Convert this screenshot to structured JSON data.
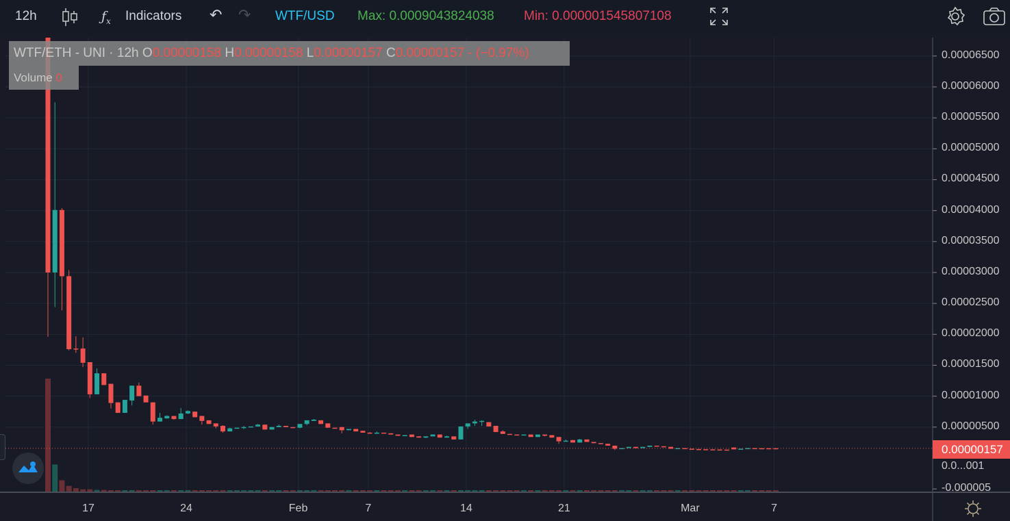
{
  "toolbar": {
    "interval": "12h",
    "indicators_label": "Indicators",
    "pair": "WTF/USD",
    "max_label": "Max: 0.0009043824038",
    "min_label": "Min: 0.000001545807108",
    "colors": {
      "pair": "#29c5f6",
      "max": "#4caf50",
      "min": "#e0435a"
    },
    "icons": [
      "candlestick-icon",
      "fx-icon",
      "undo-icon",
      "redo-icon",
      "fullscreen-icon",
      "gear-icon",
      "camera-icon"
    ]
  },
  "legend": {
    "symbol": "WTF/ETH - UNI · 12h",
    "o_label": "O",
    "o": "0.00000158",
    "h_label": "H",
    "h": "0.00000158",
    "l_label": "L",
    "l": "0.00000157",
    "c_label": "C",
    "c": "0.00000157",
    "change": "- (−0.97%)",
    "volume_label": "Volume",
    "volume": "0"
  },
  "price_axis": {
    "labels": [
      "0.00006500",
      "0.00006000",
      "0.00005500",
      "0.00005000",
      "0.00004500",
      "0.00004000",
      "0.00003500",
      "0.00003000",
      "0.00002500",
      "0.00002000",
      "0.00001500",
      "0.00001000",
      "0.00000500",
      "0.0...001",
      "-0.000005"
    ],
    "last_price": "0.00000157"
  },
  "time_axis": {
    "labels": [
      "17",
      "24",
      "Feb",
      "7",
      "14",
      "21",
      "Mar",
      "7"
    ]
  },
  "chart_data": {
    "type": "candlestick",
    "interval": "12h",
    "ylim": [
      -5e-06,
      6.8e-05
    ],
    "grid": true,
    "colors": {
      "up": "#26a69a",
      "down": "#ef5350"
    },
    "last_price": 1.57e-06,
    "ohlc": [
      [
        7e-05,
        7e-05,
        1.96e-05,
        3e-05
      ],
      [
        3e-05,
        5.75e-05,
        2.44e-05,
        4.01e-05
      ],
      [
        4.01e-05,
        4.04e-05,
        2.39e-05,
        2.94e-05
      ],
      [
        2.94e-05,
        3.04e-05,
        1.74e-05,
        1.76e-05
      ],
      [
        1.77e-05,
        1.97e-05,
        1.7e-05,
        1.76e-05
      ],
      [
        1.77e-05,
        1.95e-05,
        1.47e-05,
        1.54e-05
      ],
      [
        1.55e-05,
        1.55e-05,
        9.7e-06,
        1.03e-05
      ],
      [
        1.03e-05,
        1.45e-05,
        1.03e-05,
        1.37e-05
      ],
      [
        1.37e-05,
        1.37e-05,
        1.18e-05,
        1.18e-05
      ],
      [
        1.2e-05,
        1.2e-05,
        8e-06,
        8.9e-06
      ],
      [
        9e-06,
        9e-06,
        7.3e-06,
        7.3e-06
      ],
      [
        7.3e-06,
        9.4e-06,
        7.3e-06,
        9.4e-06
      ],
      [
        9.3e-06,
        1.17e-05,
        8.5e-06,
        1.17e-05
      ],
      [
        1.17e-05,
        1.22e-05,
        1e-05,
        1e-05
      ],
      [
        1.01e-05,
        1.01e-05,
        9e-06,
        9e-06
      ],
      [
        9e-06,
        9e-06,
        5.4e-06,
        5.9e-06
      ],
      [
        5.9e-06,
        7.3e-06,
        5.9e-06,
        6.5e-06
      ],
      [
        6.4e-06,
        6.9e-06,
        6.4e-06,
        6.8e-06
      ],
      [
        6.8e-06,
        6.8e-06,
        6.2e-06,
        6.3e-06
      ],
      [
        6.3e-06,
        8.1e-06,
        6.3e-06,
        7.2e-06
      ],
      [
        7.2e-06,
        7.7e-06,
        7.1e-06,
        7.6e-06
      ],
      [
        7.5e-06,
        7.5e-06,
        6.6e-06,
        6.6e-06
      ],
      [
        6.8e-06,
        6.8e-06,
        5.4e-06,
        6e-06
      ],
      [
        6.1e-06,
        6.1e-06,
        5.5e-06,
        5.5e-06
      ],
      [
        5.6e-06,
        5.6e-06,
        4.8e-06,
        5.1e-06
      ],
      [
        5.2e-06,
        5.3e-06,
        4.1e-06,
        4.3e-06
      ],
      [
        4.3e-06,
        4.9e-06,
        4.3e-06,
        4.8e-06
      ],
      [
        4.8e-06,
        4.9e-06,
        4.8e-06,
        4.9e-06
      ],
      [
        4.9e-06,
        5.2e-06,
        4.7e-06,
        5e-06
      ],
      [
        5e-06,
        5.1e-06,
        5e-06,
        5.1e-06
      ],
      [
        5.1e-06,
        5.5e-06,
        5.1e-06,
        5.4e-06
      ],
      [
        5.4e-06,
        5.4e-06,
        4.6e-06,
        4.6e-06
      ],
      [
        4.6e-06,
        5e-06,
        4.6e-06,
        5e-06
      ],
      [
        5e-06,
        5.4e-06,
        5e-06,
        5.2e-06
      ],
      [
        5.2e-06,
        5.2e-06,
        5e-06,
        5e-06
      ],
      [
        5e-06,
        5e-06,
        4.9e-06,
        4.9e-06
      ],
      [
        4.9e-06,
        5.5e-06,
        4.8e-06,
        5.5e-06
      ],
      [
        5.5e-06,
        6.1e-06,
        5.3e-06,
        6.1e-06
      ],
      [
        6e-06,
        6.3e-06,
        6e-06,
        6.2e-06
      ],
      [
        6.1e-06,
        6.1e-06,
        5.5e-06,
        5.5e-06
      ],
      [
        5.6e-06,
        5.6e-06,
        4.9e-06,
        4.9e-06
      ],
      [
        4.9e-06,
        4.9e-06,
        4.8e-06,
        4.8e-06
      ],
      [
        5e-06,
        5e-06,
        4e-06,
        4.5e-06
      ],
      [
        4.5e-06,
        4.7e-06,
        4.5e-06,
        4.7e-06
      ],
      [
        4.7e-06,
        4.7e-06,
        4.3e-06,
        4.3e-06
      ],
      [
        4.4e-06,
        4.4e-06,
        4.1e-06,
        4.1e-06
      ],
      [
        4.1e-06,
        4.2e-06,
        4e-06,
        4e-06
      ],
      [
        4e-06,
        4.3e-06,
        3.9e-06,
        4.1e-06
      ],
      [
        4.1e-06,
        4.1e-06,
        4e-06,
        4e-06
      ],
      [
        4e-06,
        4e-06,
        3.8e-06,
        3.8e-06
      ],
      [
        3.8e-06,
        3.8e-06,
        3.6e-06,
        3.6e-06
      ],
      [
        3.6e-06,
        3.7e-06,
        3.6e-06,
        3.7e-06
      ],
      [
        3.8e-06,
        3.8e-06,
        3.4e-06,
        3.4e-06
      ],
      [
        3.5e-06,
        3.5e-06,
        3.3e-06,
        3.3e-06
      ],
      [
        3.3e-06,
        3.5e-06,
        3.2e-06,
        3.5e-06
      ],
      [
        3.5e-06,
        3.8e-06,
        3.5e-06,
        3.8e-06
      ],
      [
        3.8e-06,
        3.8e-06,
        3.3e-06,
        3.3e-06
      ],
      [
        3.3e-06,
        3.6e-06,
        3.3e-06,
        3.5e-06
      ],
      [
        3.5e-06,
        3.5e-06,
        3e-06,
        3e-06
      ],
      [
        3e-06,
        5.1e-06,
        3e-06,
        5.1e-06
      ],
      [
        5.1e-06,
        5.6e-06,
        4.7e-06,
        5.6e-06
      ],
      [
        5.6e-06,
        6.2e-06,
        5.2e-06,
        5.9e-06
      ],
      [
        5.9e-06,
        6.1e-06,
        5.2e-06,
        6e-06
      ],
      [
        5.8e-06,
        5.8e-06,
        5.1e-06,
        5.1e-06
      ],
      [
        5.2e-06,
        5.2e-06,
        4.2e-06,
        4.2e-06
      ],
      [
        4.3e-06,
        4.5e-06,
        3.9e-06,
        3.9e-06
      ],
      [
        3.9e-06,
        3.9e-06,
        3.8e-06,
        3.8e-06
      ],
      [
        3.8e-06,
        3.8e-06,
        3.7e-06,
        3.7e-06
      ],
      [
        3.7e-06,
        3.8e-06,
        3.7e-06,
        3.8e-06
      ],
      [
        3.8e-06,
        3.8e-06,
        3.4e-06,
        3.4e-06
      ],
      [
        3.4e-06,
        3.8e-06,
        3.4e-06,
        3.8e-06
      ],
      [
        3.8e-06,
        3.8e-06,
        3.5e-06,
        3.6e-06
      ],
      [
        3.7e-06,
        3.7e-06,
        3.3e-06,
        3.3e-06
      ],
      [
        3.4e-06,
        3.4e-06,
        2.3e-06,
        2.7e-06
      ],
      [
        2.7e-06,
        3e-06,
        2.7e-06,
        2.8e-06
      ],
      [
        2.9e-06,
        2.9e-06,
        2.5e-06,
        2.5e-06
      ],
      [
        2.5e-06,
        3.1e-06,
        2.5e-06,
        3e-06
      ],
      [
        3e-06,
        3e-06,
        2.6e-06,
        2.6e-06
      ],
      [
        2.6e-06,
        2.6e-06,
        2.4e-06,
        2.4e-06
      ],
      [
        2.4e-06,
        2.4e-06,
        2.3e-06,
        2.3e-06
      ],
      [
        2.3e-06,
        2.3e-06,
        2e-06,
        2e-06
      ],
      [
        2e-06,
        2e-06,
        1.3e-06,
        1.5e-06
      ],
      [
        1.5e-06,
        1.6e-06,
        1.5e-06,
        1.6e-06
      ],
      [
        1.6e-06,
        1.8e-06,
        1.6e-06,
        1.8e-06
      ],
      [
        1.8e-06,
        1.8e-06,
        1.6e-06,
        1.6e-06
      ],
      [
        1.6e-06,
        1.8e-06,
        1.6e-06,
        1.8e-06
      ],
      [
        1.8e-06,
        2e-06,
        1.8e-06,
        2e-06
      ],
      [
        2e-06,
        2e-06,
        1.9e-06,
        1.9e-06
      ],
      [
        1.9e-06,
        1.9e-06,
        1.8e-06,
        1.8e-06
      ],
      [
        1.8e-06,
        1.8e-06,
        1.5e-06,
        1.5e-06
      ],
      [
        1.5e-06,
        1.6e-06,
        1.5e-06,
        1.6e-06
      ],
      [
        1.6e-06,
        1.6e-06,
        1.5e-06,
        1.5e-06
      ],
      [
        1.5e-06,
        1.5e-06,
        1.45e-06,
        1.45e-06
      ],
      [
        1.45e-06,
        1.45e-06,
        1.42e-06,
        1.42e-06
      ],
      [
        1.42e-06,
        1.42e-06,
        1.4e-06,
        1.4e-06
      ],
      [
        1.4e-06,
        1.4e-06,
        1.38e-06,
        1.38e-06
      ],
      [
        1.38e-06,
        1.38e-06,
        1.36e-06,
        1.36e-06
      ],
      [
        1.36e-06,
        1.36e-06,
        1.34e-06,
        1.34e-06
      ],
      [
        1.7e-06,
        1.7e-06,
        1.4e-06,
        1.4e-06
      ],
      [
        1.4e-06,
        1.5e-06,
        1.4e-06,
        1.5e-06
      ],
      [
        1.5e-06,
        1.6e-06,
        1.5e-06,
        1.6e-06
      ],
      [
        1.6e-06,
        1.6e-06,
        1.58e-06,
        1.58e-06
      ],
      [
        1.58e-06,
        1.58e-06,
        1.57e-06,
        1.57e-06
      ],
      [
        1.58e-06,
        1.58e-06,
        1.57e-06,
        1.57e-06
      ],
      [
        1.58e-06,
        1.58e-06,
        1.57e-06,
        1.57e-06
      ]
    ],
    "volume_relative": [
      1.0,
      0.24,
      0.1,
      0.05,
      0.03,
      0.02,
      0.02,
      0.015,
      0.015,
      0.012
    ]
  }
}
